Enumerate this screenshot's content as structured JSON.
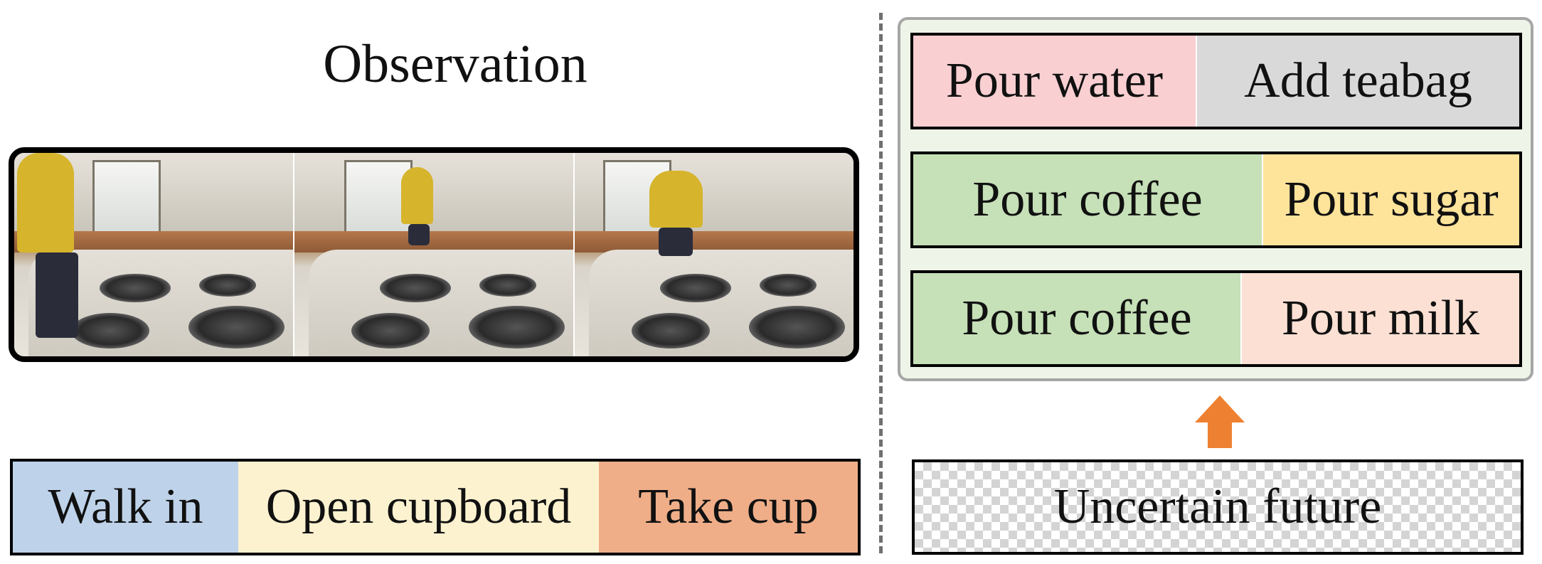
{
  "observation": {
    "title": "Observation",
    "frames": 3
  },
  "past_actions": [
    {
      "label": "Walk in",
      "color": "#bed3ea"
    },
    {
      "label": "Open cupboard",
      "color": "#fdf2d0"
    },
    {
      "label": "Take cup",
      "color": "#efae88"
    }
  ],
  "future_predictions": [
    [
      {
        "label": "Pour water",
        "color": "#f9cfd2"
      },
      {
        "label": "Add teabag",
        "color": "#d9d9d9"
      }
    ],
    [
      {
        "label": "Pour coffee",
        "color": "#c6e0b7"
      },
      {
        "label": "Pour sugar",
        "color": "#fee49a"
      }
    ],
    [
      {
        "label": "Pour coffee",
        "color": "#c6e0b7"
      },
      {
        "label": "Pour milk",
        "color": "#fbe0d3"
      }
    ]
  ],
  "uncertain_future": {
    "label": "Uncertain future"
  },
  "arrow_color": "#ee8131"
}
